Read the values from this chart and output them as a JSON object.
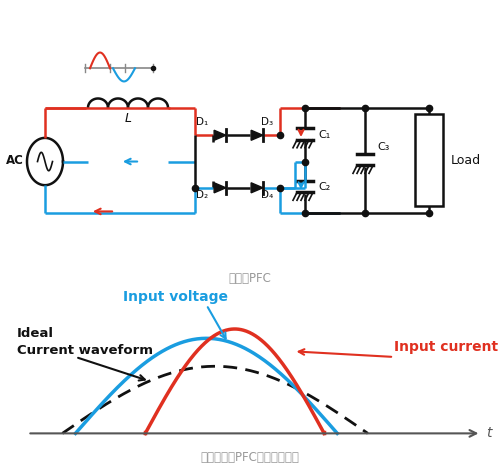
{
  "bg_color": "#ffffff",
  "title1": "被动式PFC",
  "title2": "使用被动式PFC后的电流波形",
  "title1_color": "#999999",
  "title2_color": "#999999",
  "label_voltage": "Input voltage",
  "label_current": "Input current",
  "label_ideal": "Ideal\nCurrent waveform",
  "voltage_color": "#1a9de0",
  "current_color": "#e03020",
  "ideal_color": "#111111",
  "axis_color": "#555555",
  "red": "#e03020",
  "blue": "#1a9de0",
  "black": "#111111"
}
